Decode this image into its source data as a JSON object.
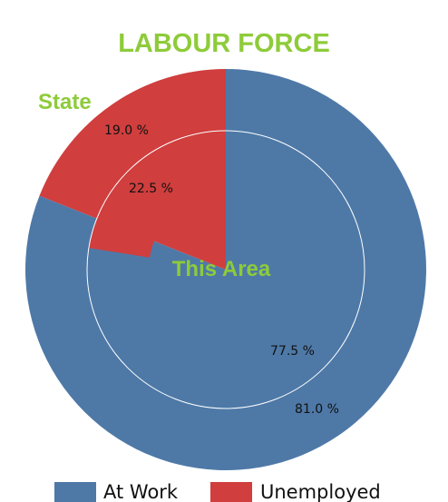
{
  "chart_data": {
    "type": "pie",
    "title": "LABOUR FORCE",
    "variant": "nested-donut",
    "categories": [
      "At Work",
      "Unemployed"
    ],
    "rings": [
      {
        "name": "State",
        "position": "outer",
        "values": [
          81.0,
          19.0
        ],
        "labels": [
          "81.0 %",
          "19.0 %"
        ]
      },
      {
        "name": "This Area",
        "position": "inner",
        "values": [
          77.5,
          22.5
        ],
        "labels": [
          "77.5 %",
          "22.5 %"
        ]
      }
    ],
    "legend": {
      "placement": "bottom",
      "items": [
        {
          "label": "At Work",
          "color": "#4e79a7"
        },
        {
          "label": "Unemployed",
          "color": "#d03e3e"
        }
      ]
    },
    "colors": {
      "title": "#8ecb3a",
      "ring_label": "#8ecb3a",
      "value_label": "#111111",
      "divider": "#ffffff"
    }
  }
}
